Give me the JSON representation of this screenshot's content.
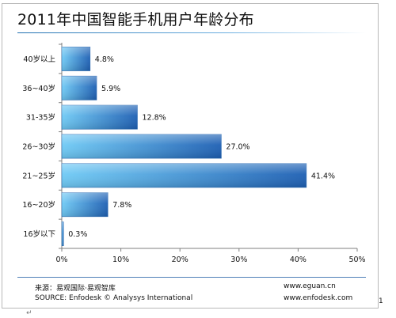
{
  "chart_data": {
    "type": "bar",
    "orientation": "horizontal",
    "title": "2011年中国智能手机用户年龄分布",
    "categories": [
      "40岁以上",
      "36~40岁",
      "31-35岁",
      "26~30岁",
      "21~25岁",
      "16~20岁",
      "16岁以下"
    ],
    "values": [
      4.8,
      5.9,
      12.8,
      27.0,
      41.4,
      7.8,
      0.3
    ],
    "value_labels": [
      "4.8%",
      "5.9%",
      "12.8%",
      "27.0%",
      "41.4%",
      "7.8%",
      "0.3%"
    ],
    "xlim": [
      0,
      50
    ],
    "ticks": [
      0,
      10,
      20,
      30,
      40,
      50
    ],
    "tick_labels": [
      "0%",
      "10%",
      "20%",
      "30%",
      "40%",
      "50%"
    ],
    "xlabel": "",
    "ylabel": "",
    "grid": false,
    "bar_color_light": "#6fcaf5",
    "bar_color_dark": "#1d5fb3"
  },
  "footer": {
    "source_cn": "来源：易观国际·易观智库",
    "source_en": "SOURCE: Enfodesk © Analysys International",
    "url_1": "www.eguan.cn",
    "url_2": "www.enfodesk.com"
  },
  "marks": {
    "side": "1",
    "bottom": "↵"
  }
}
